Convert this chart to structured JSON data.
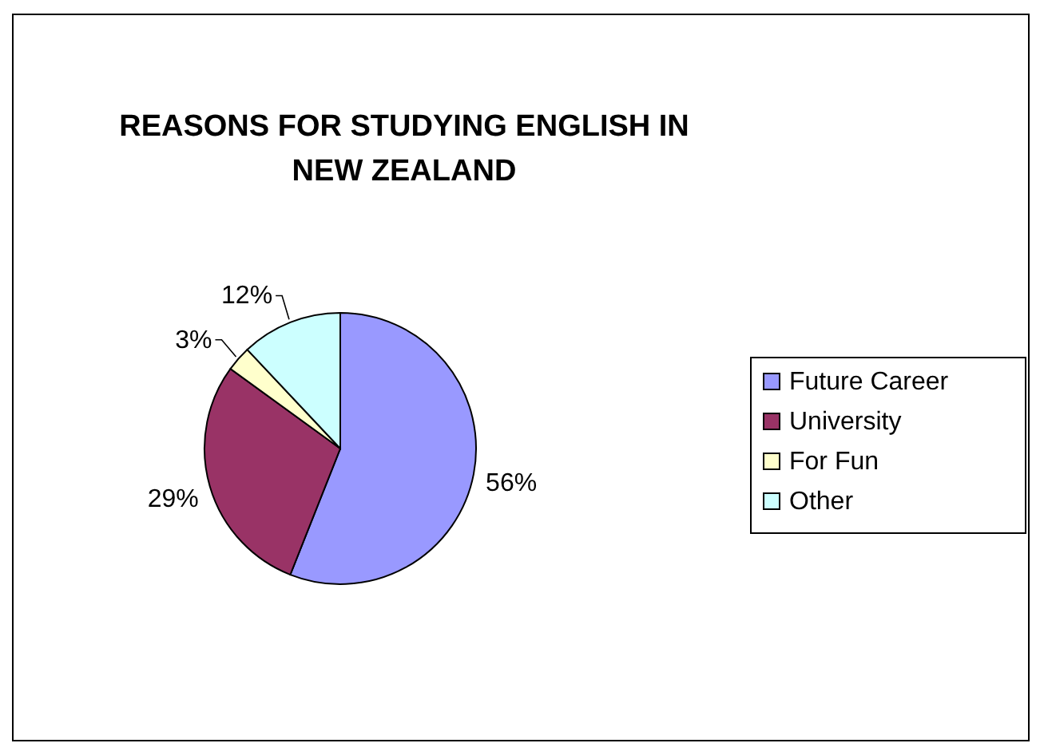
{
  "chart_data": {
    "type": "pie",
    "title": "REASONS FOR STUDYING ENGLISH IN NEW ZEALAND",
    "categories": [
      "Future Career",
      "University",
      "For Fun",
      "Other"
    ],
    "values": [
      56,
      29,
      3,
      12
    ],
    "colors": [
      "#9999ff",
      "#993366",
      "#ffffcc",
      "#ccffff"
    ],
    "value_labels": [
      "56%",
      "29%",
      "3%",
      "12%"
    ],
    "legend": "right"
  }
}
